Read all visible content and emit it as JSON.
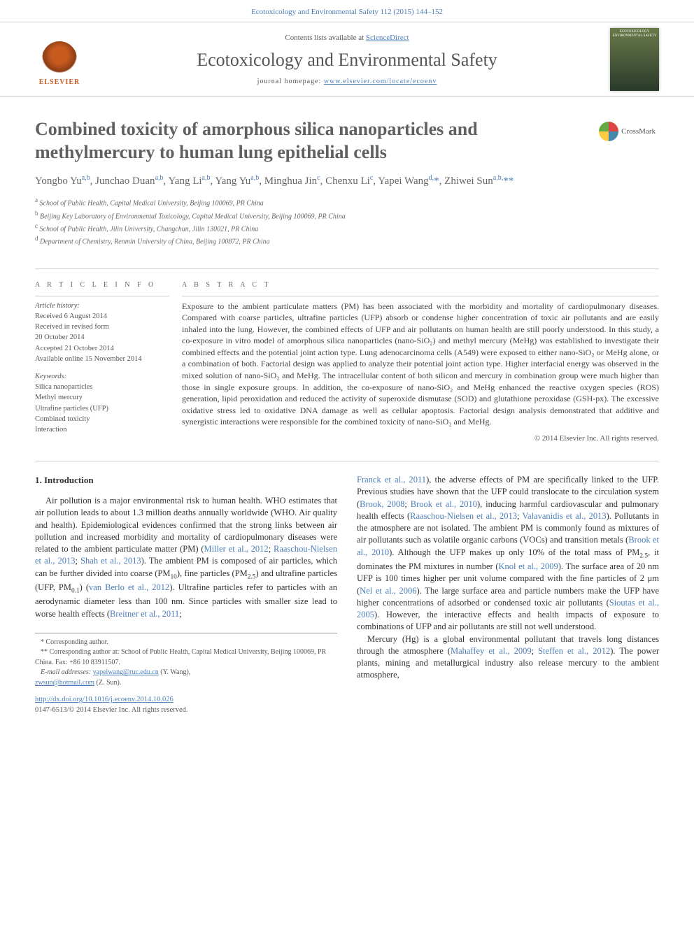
{
  "journal": {
    "citation": "Ecotoxicology and Environmental Safety 112 (2015) 144–152",
    "contents_prefix": "Contents lists available at ",
    "contents_link": "ScienceDirect",
    "name": "Ecotoxicology and Environmental Safety",
    "homepage_prefix": "journal homepage: ",
    "homepage_link": "www.elsevier.com/locate/ecoenv",
    "publisher_logo_label": "ELSEVIER",
    "cover_label": "ECOTOXICOLOGY ENVIRONMENTAL SAFETY"
  },
  "article": {
    "title": "Combined toxicity of amorphous silica nanoparticles and methylmercury to human lung epithelial cells",
    "crossmark_label": "CrossMark"
  },
  "authors_html": "Yongbo Yu<sup>a,b</sup>, Junchao Duan<sup>a,b</sup>, Yang Li<sup>a,b</sup>, Yang Yu<sup>a,b</sup>, Minghua Jin<sup>c</sup>, Chenxu Li<sup>c</sup>, Yapei Wang<sup>d,</sup><span class='corr'>*</span>, Zhiwei Sun<sup>a,b,</sup><span class='corr'>**</span>",
  "affiliations": [
    {
      "sup": "a",
      "text": "School of Public Health, Capital Medical University, Beijing 100069, PR China"
    },
    {
      "sup": "b",
      "text": "Beijing Key Laboratory of Environmental Toxicology, Capital Medical University, Beijing 100069, PR China"
    },
    {
      "sup": "c",
      "text": "School of Public Health, Jilin University, Changchun, Jilin 130021, PR China"
    },
    {
      "sup": "d",
      "text": "Department of Chemistry, Renmin University of China, Beijing 100872, PR China"
    }
  ],
  "article_info": {
    "head": "A R T I C L E  I N F O",
    "history_label": "Article history:",
    "history": [
      "Received 6 August 2014",
      "Received in revised form",
      "20 October 2014",
      "Accepted 21 October 2014",
      "Available online 15 November 2014"
    ],
    "keywords_label": "Keywords:",
    "keywords": [
      "Silica nanoparticles",
      "Methyl mercury",
      "Ultrafine particles (UFP)",
      "Combined toxicity",
      "Interaction"
    ]
  },
  "abstract": {
    "head": "A B S T R A C T",
    "text": "Exposure to the ambient particulate matters (PM) has been associated with the morbidity and mortality of cardiopulmonary diseases. Compared with coarse particles, ultrafine particles (UFP) absorb or condense higher concentration of toxic air pollutants and are easily inhaled into the lung. However, the combined effects of UFP and air pollutants on human health are still poorly understood. In this study, a co-exposure in vitro model of amorphous silica nanoparticles (nano-SiO₂) and methyl mercury (MeHg) was established to investigate their combined effects and the potential joint action type. Lung adenocarcinoma cells (A549) were exposed to either nano-SiO₂ or MeHg alone, or a combination of both. Factorial design was applied to analyze their potential joint action type. Higher interfacial energy was observed in the mixed solution of nano-SiO₂ and MeHg. The intracellular content of both silicon and mercury in combination group were much higher than those in single exposure groups. In addition, the co-exposure of nano-SiO₂ and MeHg enhanced the reactive oxygen species (ROS) generation, lipid peroxidation and reduced the activity of superoxide dismutase (SOD) and glutathione peroxidase (GSH-px). The excessive oxidative stress led to oxidative DNA damage as well as cellular apoptosis. Factorial design analysis demonstrated that additive and synergistic interactions were responsible for the combined toxicity of nano-SiO₂ and MeHg.",
    "copyright": "© 2014 Elsevier Inc. All rights reserved."
  },
  "intro": {
    "heading": "1. Introduction",
    "col1_html": "Air pollution is a major environmental risk to human health. WHO estimates that air pollution leads to about 1.3 million deaths annually worldwide (WHO. Air quality and health). Epidemiological evidences confirmed that the strong links between air pollution and increased morbidity and mortality of cardiopulmonary diseases were related to the ambient particulate matter (PM) (<span class='ref-link'>Miller et al., 2012</span>; <span class='ref-link'>Raaschou-Nielsen et al., 2013</span>; <span class='ref-link'>Shah et al., 2013</span>). The ambient PM is composed of air particles, which can be further divided into coarse (PM<sub>10</sub>), fine particles (PM<sub>2.5</sub>) and ultrafine particles (UFP, PM<sub>0.1</sub>) (<span class='ref-link'>van Berlo et al., 2012</span>). Ultrafine particles refer to particles with an aerodynamic diameter less than 100 nm. Since particles with smaller size lead to worse health effects (<span class='ref-link'>Breitner et al., 2011</span>;",
    "col2_html": "<span class='ref-link'>Franck et al., 2011</span>), the adverse effects of PM are specifically linked to the UFP. Previous studies have shown that the UFP could translocate to the circulation system (<span class='ref-link'>Brook, 2008</span>; <span class='ref-link'>Brook et al., 2010</span>), inducing harmful cardiovascular and pulmonary health effects (<span class='ref-link'>Raaschou-Nielsen et al., 2013</span>; <span class='ref-link'>Valavanidis et al., 2013</span>). Pollutants in the atmosphere are not isolated. The ambient PM is commonly found as mixtures of air pollutants such as volatile organic carbons (VOCs) and transition metals (<span class='ref-link'>Brook et al., 2010</span>). Although the UFP makes up only 10% of the total mass of PM<sub>2.5</sub>, it dominates the PM mixtures in number (<span class='ref-link'>Knol et al., 2009</span>). The surface area of 20 nm UFP is 100 times higher per unit volume compared with the fine particles of 2 μm (<span class='ref-link'>Nel et al., 2006</span>). The large surface area and particle numbers make the UFP have higher concentrations of adsorbed or condensed toxic air pollutants (<span class='ref-link'>Sioutas et al., 2005</span>). However, the interactive effects and health impacts of exposure to combinations of UFP and air pollutants are still not well understood.",
    "col2_p2_html": "Mercury (Hg) is a global environmental pollutant that travels long distances through the atmosphere (<span class='ref-link'>Mahaffey et al., 2009</span>; <span class='ref-link'>Steffen et al., 2012</span>). The power plants, mining and metallurgical industry also release mercury to the ambient atmosphere,"
  },
  "footnotes": {
    "l1": "* Corresponding author.",
    "l2": "** Corresponding author at: School of Public Health, Capital Medical University, Beijing 100069, PR China. Fax: +86 10 83911507.",
    "email_label": "E-mail addresses: ",
    "email1": "yapeiwang@ruc.edu.cn",
    "email1_suffix": " (Y. Wang),",
    "email2": "zwsun@hotmail.com",
    "email2_suffix": " (Z. Sun)."
  },
  "doi": {
    "link": "http://dx.doi.org/10.1016/j.ecoenv.2014.10.026",
    "issn_line": "0147-6513/© 2014 Elsevier Inc. All rights reserved."
  },
  "colors": {
    "link": "#4a7db8",
    "title_gray": "#606060",
    "body_text": "#333333",
    "rule": "#cccccc",
    "elsevier_orange": "#c85a1f"
  }
}
